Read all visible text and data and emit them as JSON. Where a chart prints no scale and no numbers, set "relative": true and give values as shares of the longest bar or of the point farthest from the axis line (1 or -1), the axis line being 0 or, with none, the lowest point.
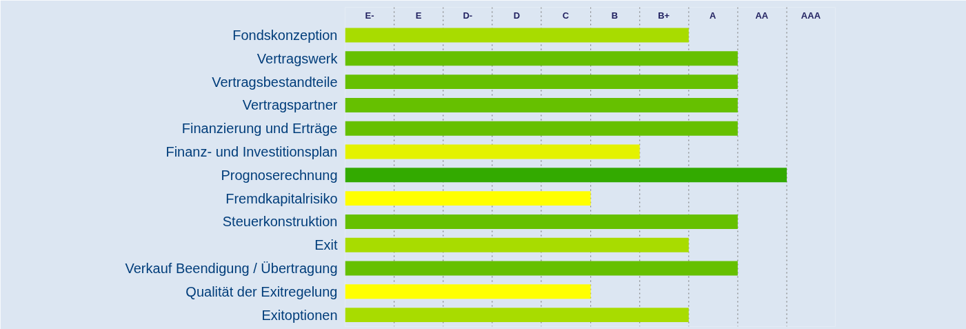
{
  "chart_data": {
    "type": "bar",
    "orientation": "horizontal",
    "relative": true,
    "categories": [
      "Fondskonzeption",
      "Vertragswerk",
      "Vertragsbestandteile",
      "Vertragspartner",
      "Finanzierung und Erträge",
      "Finanz- und Investitionsplan",
      "Prognoserechnung",
      "Fremdkapitalrisiko",
      "Steuerkonstruktion",
      "Exit",
      "Verkauf Beendigung / Übertragung",
      "Qualität der Exitregelung",
      "Exitoptionen"
    ],
    "values": [
      0.778,
      0.889,
      0.889,
      0.889,
      0.889,
      0.667,
      1,
      0.556,
      0.889,
      0.778,
      0.889,
      0.556,
      0.778
    ],
    "colors": [
      "#a8dc00",
      "#66c000",
      "#66c000",
      "#66c000",
      "#66c000",
      "#e4f200",
      "#33aa00",
      "#ffff00",
      "#66c000",
      "#a8dc00",
      "#66c000",
      "#ffff00",
      "#a8dc00"
    ],
    "annotations": [
      "E-",
      "E",
      "D-",
      "D",
      "C",
      "B",
      "B+",
      "A",
      "AA",
      "AAA"
    ],
    "ref_lines": [
      {
        "axis": "x",
        "value": 0.111,
        "color": "#808080",
        "line_style": "dotted"
      },
      {
        "axis": "x",
        "value": 0.222,
        "color": "#808080",
        "line_style": "dotted"
      },
      {
        "axis": "x",
        "value": 0.333,
        "color": "#808080",
        "line_style": "dotted"
      },
      {
        "axis": "x",
        "value": 0.444,
        "color": "#808080",
        "line_style": "dotted"
      },
      {
        "axis": "x",
        "value": 0.556,
        "color": "#808080",
        "line_style": "dotted"
      },
      {
        "axis": "x",
        "value": 0.667,
        "color": "#808080",
        "line_style": "dotted"
      },
      {
        "axis": "x",
        "value": 0.778,
        "color": "#808080",
        "line_style": "dotted"
      },
      {
        "axis": "x",
        "value": 0.889,
        "color": "#808080",
        "line_style": "dotted"
      },
      {
        "axis": "x",
        "value": 1,
        "color": "#808080",
        "line_style": "dotted"
      }
    ],
    "grid": false
  }
}
